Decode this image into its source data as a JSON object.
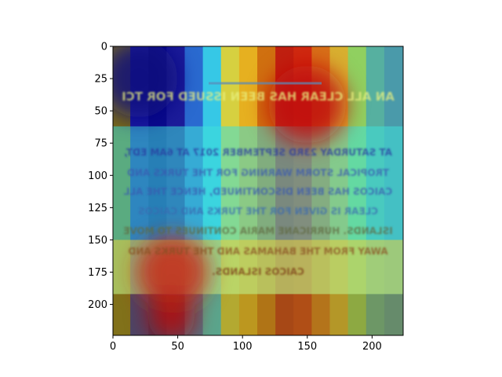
{
  "chart_data": {
    "type": "heatmap",
    "title": "",
    "xlabel": "",
    "ylabel": "",
    "xlim": [
      0,
      224
    ],
    "ylim": [
      224,
      0
    ],
    "x_ticks": [
      "0",
      "50",
      "100",
      "150",
      "200"
    ],
    "x_tick_values": [
      0,
      50,
      100,
      150,
      200
    ],
    "y_ticks": [
      "0",
      "25",
      "50",
      "75",
      "100",
      "125",
      "150",
      "175",
      "200"
    ],
    "y_tick_values": [
      0,
      25,
      50,
      75,
      100,
      125,
      150,
      175,
      200
    ],
    "grid": false,
    "colormap": "jet",
    "overlay": {
      "description_text_lines": [
        "AN ALL CLEAR HAS BEEN ISSUED FOR TCI",
        "AT SATURDAY 23RD SEPTEMBER 2017 AT 6AM EDT,",
        "TROPICAL STORM WARNING FOR THE TURKS AND",
        "CAICOS HAS BEEN DISCONTINUED, HENCE THE ALL",
        "CLEAR IS GIVEN FOR THE TURKS AND CAICOS",
        "ISLANDS. HURRICANE MARIA CONTINUES TO MOVE",
        "AWAY FROM THE BAHAMAS AND THE TURKS AND",
        "CAICOS ISLANDS."
      ],
      "mirrored": true
    },
    "heat_columns": {
      "x": [
        0,
        14,
        28,
        42,
        56,
        70,
        84,
        98,
        112,
        126,
        140,
        154,
        168,
        182,
        196,
        210,
        224
      ],
      "colors": [
        "#7a6a16",
        "#1a1aa0",
        "#0a0a8c",
        "#1c1c9a",
        "#2a6ad0",
        "#36c8e6",
        "#d6d040",
        "#e6b020",
        "#d07010",
        "#c02010",
        "#d02a10",
        "#d87018",
        "#d8b030",
        "#90d060",
        "#56b0a0",
        "#4a9aaa",
        "#5aa0a6"
      ]
    },
    "hot_spots": [
      {
        "x": 46,
        "y": 175,
        "r": 28,
        "color": "#c82818"
      },
      {
        "x": 150,
        "y": 45,
        "r": 30,
        "color": "#c01010"
      },
      {
        "x": 45,
        "y": 210,
        "r": 18,
        "color": "#b01010"
      },
      {
        "x": 20,
        "y": 25,
        "r": 30,
        "color": "#0c0c7c"
      }
    ],
    "bands": [
      {
        "y0": 62,
        "y1": 192,
        "color": "#40e0d8",
        "opacity": 0.55
      },
      {
        "y0": 150,
        "y1": 192,
        "color": "#e8d040",
        "opacity": 0.55
      },
      {
        "y0": 192,
        "y1": 224,
        "color": "#8a7a20",
        "opacity": 0.45
      }
    ]
  }
}
